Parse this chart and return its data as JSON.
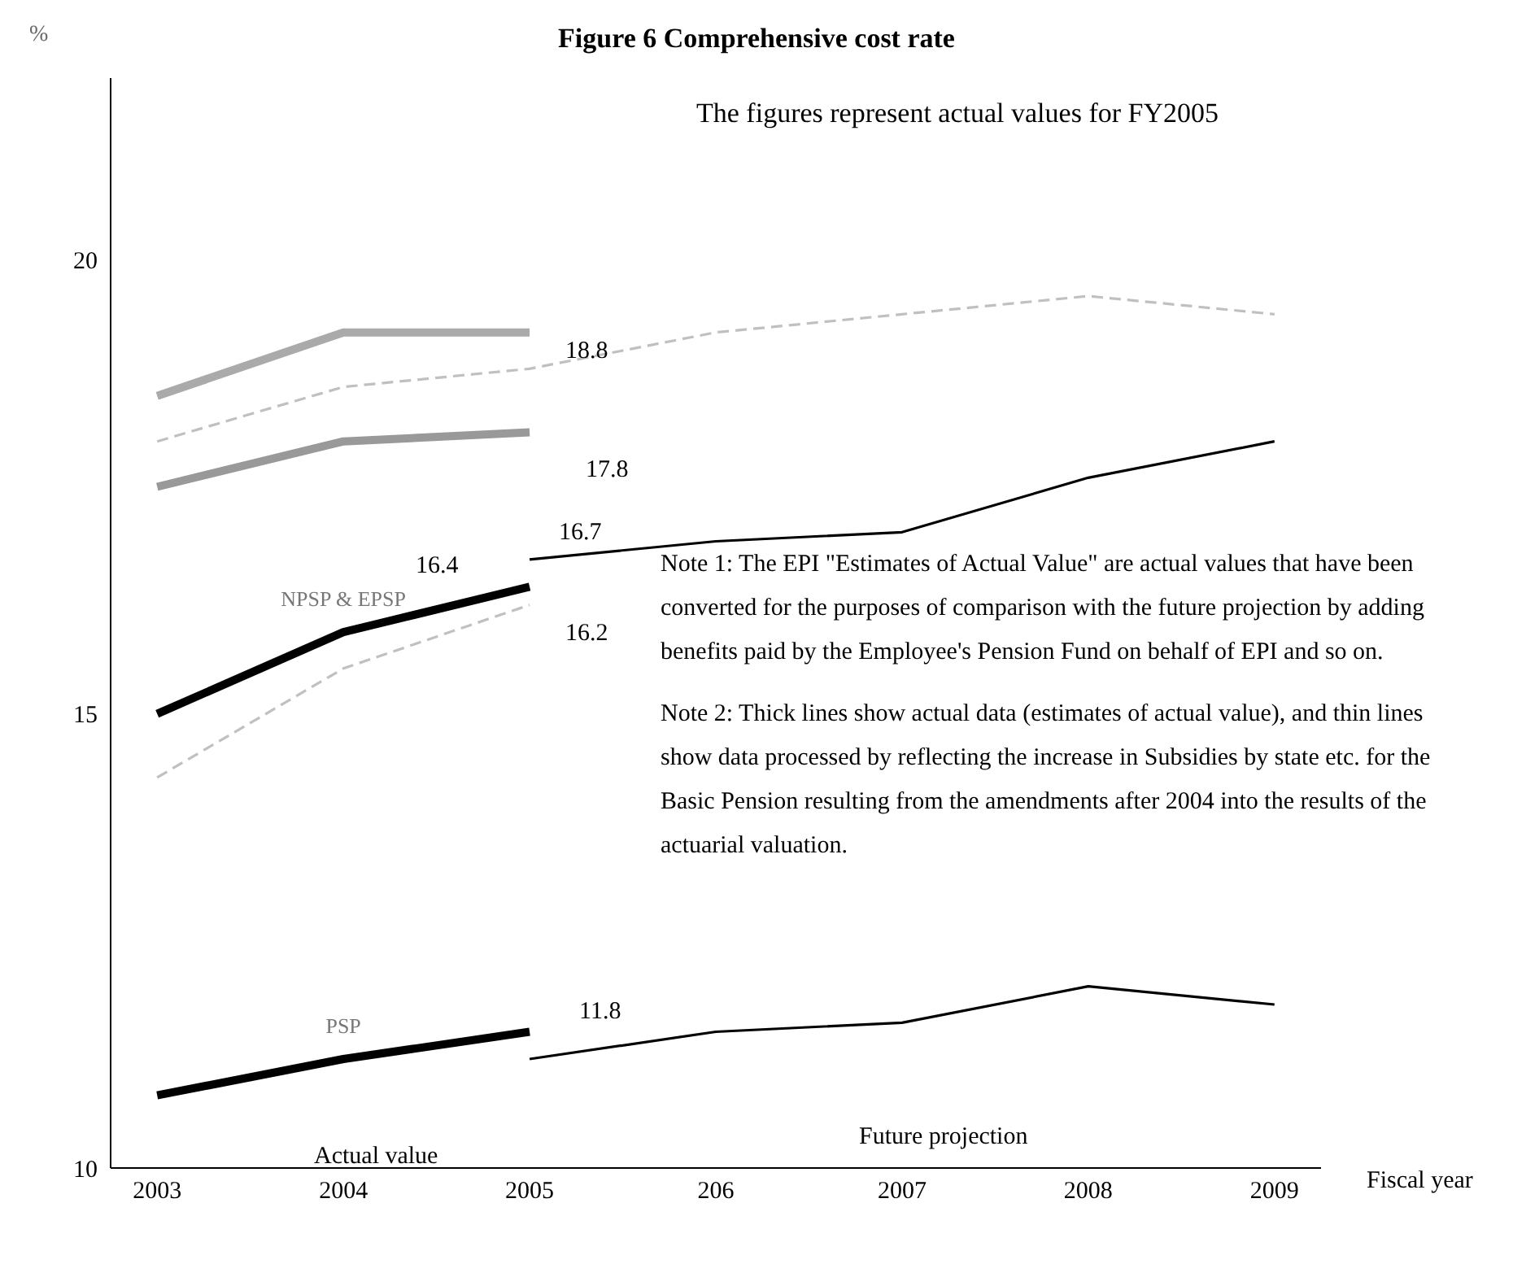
{
  "chart_data": {
    "type": "line",
    "title": "Figure 6  Comprehensive cost rate",
    "subtitle": "The figures represent actual values for FY2005",
    "ylabel": "%",
    "xlabel": "Fiscal year",
    "categories": [
      "2003",
      "2004",
      "2005",
      "206",
      "2007",
      "2008",
      "2009"
    ],
    "series": [
      {
        "color": "#aaaaaa",
        "values": [
          18.5,
          19.2,
          19.2,
          null,
          null,
          null,
          null
        ]
      },
      {
        "color": "#c0c0c0",
        "line_style": "dashed",
        "values": [
          18.0,
          18.6,
          18.8,
          19.2,
          19.4,
          19.6,
          19.4
        ]
      },
      {
        "color": "#999999",
        "values": [
          17.5,
          18.0,
          18.1,
          null,
          null,
          null,
          null
        ]
      },
      {
        "color": "#000000",
        "values": [
          null,
          null,
          16.7,
          16.9,
          17.0,
          17.6,
          18.0
        ]
      },
      {
        "name": "NPSP & EPSP",
        "color": "#000000",
        "values": [
          15.0,
          15.9,
          16.4,
          null,
          null,
          null,
          null
        ]
      },
      {
        "color": "#c0c0c0",
        "line_style": "dashed",
        "values": [
          14.3,
          15.5,
          16.2,
          null,
          null,
          null,
          null
        ]
      },
      {
        "name": "PSP",
        "color": "#000000",
        "values": [
          10.8,
          11.2,
          11.5,
          null,
          null,
          null,
          null
        ]
      },
      {
        "color": "#000000",
        "values": [
          null,
          null,
          11.2,
          11.5,
          11.6,
          12.0,
          11.8
        ]
      }
    ],
    "ylim": [
      10,
      22
    ],
    "yticks": [
      10,
      15,
      20
    ],
    "grid": false,
    "legend": false,
    "marker": "none",
    "annotations": [
      {
        "text": "18.8",
        "x": "2005",
        "y": 18.8
      },
      "17.8",
      {
        "text": "16.7",
        "x": "2005",
        "y": 16.7
      },
      {
        "text": "16.4",
        "x": "2005",
        "y": 16.4
      },
      {
        "text": "16.2",
        "x": "2005",
        "y": 16.2
      },
      "11.8",
      "Actual value",
      "Future projection",
      "Note 1: The EPI \"Estimates of Actual Value\" are actual values that have been converted for the purposes of comparison with the future projection by adding benefits paid by the Employee's Pension Fund on behalf of EPI and so on.",
      "Note 2: Thick lines show actual data (estimates of actual value), and thin lines show data processed by reflecting the increase in Subsidies by state etc. for the Basic Pension resulting from the amendments after 2004 into the results of the actuarial valuation."
    ]
  }
}
